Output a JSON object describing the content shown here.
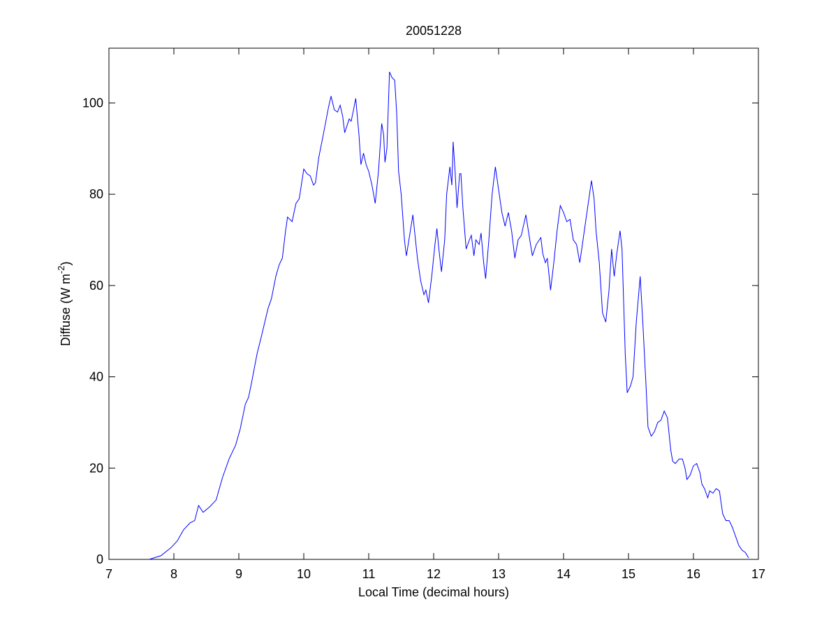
{
  "chart_data": {
    "type": "line",
    "title": "20051228",
    "xlabel": "Local Time (decimal hours)",
    "ylabel": [
      "Diffuse (W m",
      "-2",
      ")"
    ],
    "xlim": [
      7,
      17
    ],
    "ylim": [
      0,
      112
    ],
    "xticks": [
      7,
      8,
      9,
      10,
      11,
      12,
      13,
      14,
      15,
      16,
      17
    ],
    "yticks": [
      0,
      20,
      40,
      60,
      80,
      100
    ],
    "grid": false,
    "series": [
      {
        "color": "#0000ff",
        "x": [
          7.62,
          7.8,
          7.95,
          8.05,
          8.15,
          8.25,
          8.32,
          8.38,
          8.45,
          8.55,
          8.65,
          8.75,
          8.85,
          8.95,
          9.02,
          9.1,
          9.15,
          9.2,
          9.28,
          9.35,
          9.45,
          9.5,
          9.57,
          9.62,
          9.67,
          9.72,
          9.75,
          9.82,
          9.88,
          9.93,
          10.0,
          10.05,
          10.1,
          10.15,
          10.18,
          10.23,
          10.3,
          10.38,
          10.42,
          10.47,
          10.52,
          10.56,
          10.6,
          10.63,
          10.7,
          10.73,
          10.78,
          10.8,
          10.85,
          10.88,
          10.92,
          10.96,
          11.0,
          11.05,
          11.1,
          11.15,
          11.2,
          11.23,
          11.25,
          11.28,
          11.32,
          11.36,
          11.4,
          11.43,
          11.46,
          11.5,
          11.55,
          11.58,
          11.63,
          11.68,
          11.72,
          11.75,
          11.8,
          11.85,
          11.88,
          11.92,
          11.97,
          12.02,
          12.05,
          12.08,
          12.12,
          12.17,
          12.2,
          12.25,
          12.28,
          12.3,
          12.33,
          12.36,
          12.4,
          12.42,
          12.45,
          12.5,
          12.55,
          12.58,
          12.62,
          12.65,
          12.7,
          12.73,
          12.77,
          12.8,
          12.85,
          12.9,
          12.95,
          13.0,
          13.05,
          13.1,
          13.15,
          13.2,
          13.25,
          13.3,
          13.35,
          13.42,
          13.48,
          13.52,
          13.58,
          13.65,
          13.68,
          13.72,
          13.75,
          13.8,
          13.85,
          13.9,
          13.95,
          14.0,
          14.05,
          14.1,
          14.15,
          14.2,
          14.25,
          14.3,
          14.38,
          14.43,
          14.47,
          14.5,
          14.55,
          14.6,
          14.65,
          14.7,
          14.74,
          14.78,
          14.82,
          14.87,
          14.9,
          14.95,
          14.98,
          15.03,
          15.07,
          15.12,
          15.18,
          15.22,
          15.27,
          15.3,
          15.35,
          15.4,
          15.45,
          15.5,
          15.55,
          15.6,
          15.65,
          15.68,
          15.72,
          15.78,
          15.83,
          15.87,
          15.9,
          15.95,
          16.0,
          16.05,
          16.1,
          16.13,
          16.17,
          16.22,
          16.25,
          16.3,
          16.35,
          16.4,
          16.45,
          16.5,
          16.55,
          16.6,
          16.65,
          16.7,
          16.75,
          16.8,
          16.85
        ],
        "values": [
          0,
          0.8,
          2.5,
          4,
          6.5,
          8,
          8.5,
          11.8,
          10.3,
          11.5,
          13,
          18,
          22,
          25,
          28.5,
          34,
          35.5,
          39,
          45,
          49,
          55,
          57,
          62,
          64.5,
          66,
          72,
          75,
          74,
          78,
          79,
          85.5,
          84.5,
          84,
          82,
          82.5,
          88,
          93,
          99,
          101.5,
          98.5,
          98,
          99.5,
          97,
          93.5,
          96.5,
          96,
          99.5,
          101,
          93,
          86.5,
          89,
          86.5,
          85,
          82,
          78,
          85,
          95.5,
          93,
          87,
          90,
          106.8,
          105.5,
          105,
          98,
          85,
          80,
          70,
          66.5,
          71,
          75.5,
          70,
          66,
          61,
          58,
          59,
          56.2,
          62,
          69,
          72.5,
          68,
          63,
          70,
          80,
          86,
          82,
          91.5,
          85,
          77,
          84.5,
          84.5,
          77,
          68,
          70,
          71,
          66.5,
          70,
          69,
          71.5,
          65,
          61.5,
          70,
          80,
          86,
          81,
          76,
          73,
          76,
          72,
          66,
          70,
          71,
          75.5,
          70,
          66.5,
          69,
          70.5,
          67,
          65,
          66,
          59,
          65,
          72,
          77.5,
          76,
          74,
          74.5,
          70,
          69,
          65,
          70,
          78,
          83,
          79,
          72,
          65,
          54,
          52,
          59,
          68,
          62,
          67,
          72,
          68,
          45,
          36.5,
          38,
          40,
          52,
          62,
          52,
          38,
          29,
          27,
          28,
          30,
          30.5,
          32.5,
          31,
          24,
          21.5,
          21,
          22,
          22,
          20,
          17.5,
          18.5,
          20.5,
          21,
          19,
          16.5,
          15.5,
          13.5,
          15,
          14.5,
          15.5,
          15,
          10,
          8.5,
          8.5,
          7,
          5,
          3,
          2,
          1.5,
          0.3
        ]
      }
    ]
  }
}
